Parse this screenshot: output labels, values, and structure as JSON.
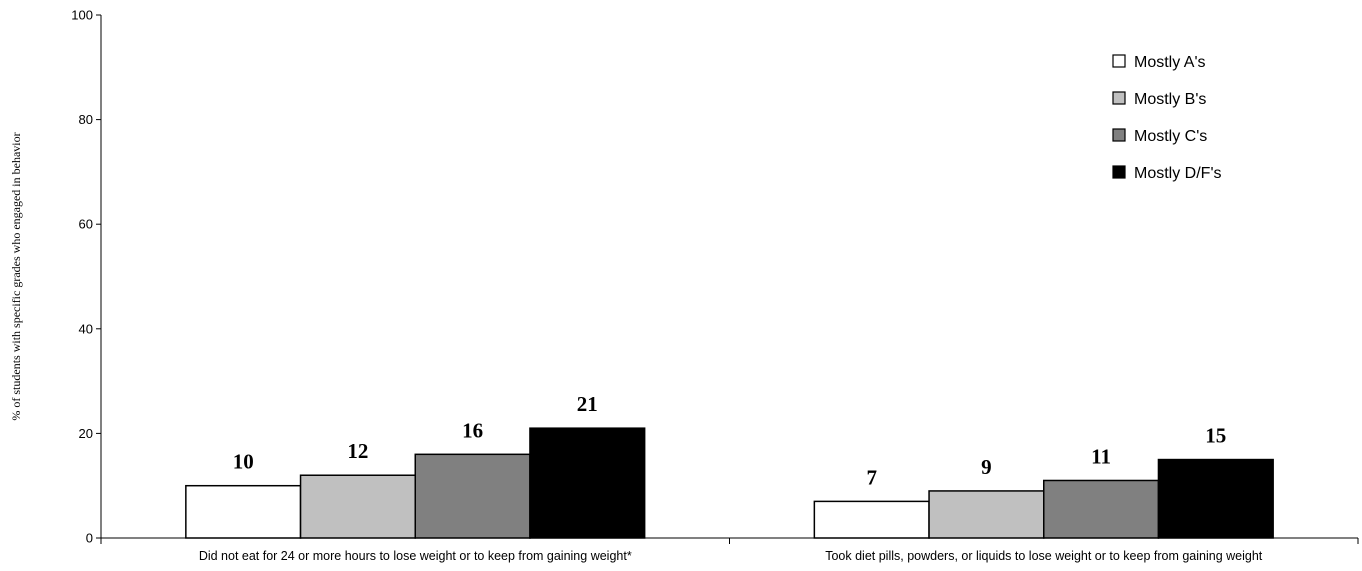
{
  "chart_data": {
    "type": "bar",
    "title": "",
    "xlabel": "",
    "ylabel": "% of students with specific grades who engaged in behavior",
    "ylim": [
      0,
      100
    ],
    "yticks": [
      "0",
      "20",
      "40",
      "60",
      "80",
      "100"
    ],
    "grid": false,
    "legend_position": "top-right",
    "categories": [
      "Did not eat for 24 or more hours to lose weight or to keep from gaining weight*",
      "Took diet pills, powders, or liquids to lose weight or to keep from gaining weight"
    ],
    "series": [
      {
        "name": "Mostly A's",
        "color": "#ffffff",
        "values": [
          10,
          7
        ]
      },
      {
        "name": "Mostly B's",
        "color": "#c0c0c0",
        "values": [
          12,
          9
        ]
      },
      {
        "name": "Mostly C's",
        "color": "#808080",
        "values": [
          16,
          11
        ]
      },
      {
        "name": "Mostly D/F's",
        "color": "#000000",
        "values": [
          21,
          15
        ]
      }
    ],
    "data_labels": [
      [
        "10",
        "7"
      ],
      [
        "12",
        "9"
      ],
      [
        "16",
        "11"
      ],
      [
        "21",
        "15"
      ]
    ]
  }
}
